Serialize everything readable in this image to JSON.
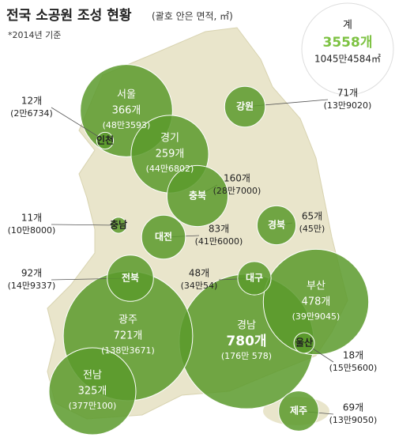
{
  "chart_data": {
    "type": "bubble",
    "title": "전국 소공원 조성 현황",
    "subtitle": "(괄호 안은 면적, ㎡)",
    "note": "*2014년 기준",
    "total": {
      "name": "계",
      "count_label": "3558개",
      "area_label": "1045만4584㎡"
    },
    "color": "#5b9a2c",
    "categories": [
      "인천",
      "서울",
      "경기",
      "강원",
      "충북",
      "충남",
      "대전",
      "경북",
      "전북",
      "대구",
      "부산",
      "경남",
      "광주",
      "전남",
      "울산",
      "제주"
    ],
    "values": [
      12,
      366,
      259,
      71,
      160,
      11,
      83,
      65,
      92,
      48,
      478,
      780,
      721,
      325,
      18,
      69
    ],
    "value_labels": [
      "12개",
      "366개",
      "259개",
      "71개",
      "160개",
      "11개",
      "83개",
      "65개",
      "92개",
      "48개",
      "478개",
      "780개",
      "721개",
      "325개",
      "18개",
      "69개"
    ],
    "area_labels": [
      "(2만6734)",
      "(48만3593)",
      "(44만6802)",
      "(13만9020)",
      "(28만7000)",
      "(10만8000)",
      "(41만6000)",
      "(45만)",
      "(14만9337)",
      "(34만54)",
      "(39만9045)",
      "(176만 578)",
      "(138만3671)",
      "(377만100)",
      "(15만5600)",
      "(13만9050)"
    ]
  }
}
